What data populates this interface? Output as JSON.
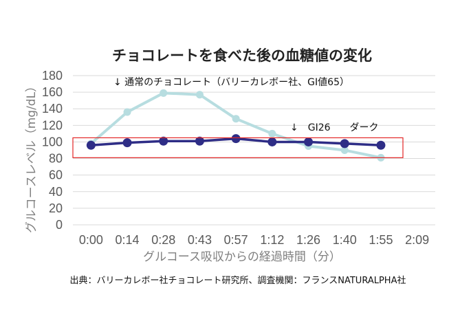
{
  "chart_data": {
    "type": "line",
    "title": "チョコレートを食べた後の血糖値の変化",
    "xlabel": "グルコース吸収からの経過時間（分）",
    "ylabel": "グルコースレベル（mg/dL）",
    "categories": [
      "0:00",
      "0:14",
      "0:28",
      "0:43",
      "0:57",
      "1:12",
      "1:26",
      "1:40",
      "1:55",
      "2:09"
    ],
    "ylim": [
      0,
      180
    ],
    "yticks": [
      0,
      20,
      40,
      60,
      80,
      100,
      120,
      140,
      160,
      180
    ],
    "grid": true,
    "series": [
      {
        "color": "#b7dde0",
        "values": [
          98,
          136,
          159,
          157,
          128,
          110,
          95,
          90,
          81,
          null
        ]
      },
      {
        "color": "#2e2d86",
        "values": [
          96,
          99,
          101,
          101,
          104,
          100,
          100,
          98,
          96,
          null
        ]
      }
    ],
    "annotations": [
      {
        "text": "↓ 通常のチョコレート（バリーカレボー社、GI値65）"
      },
      {
        "text": "↓　GI26　　ダーク"
      }
    ],
    "highlight_box_color": "#e32626",
    "source": "出典：バリーカレボー社チョコレート研究所、調査機関：フランスNATURALPHA社"
  }
}
